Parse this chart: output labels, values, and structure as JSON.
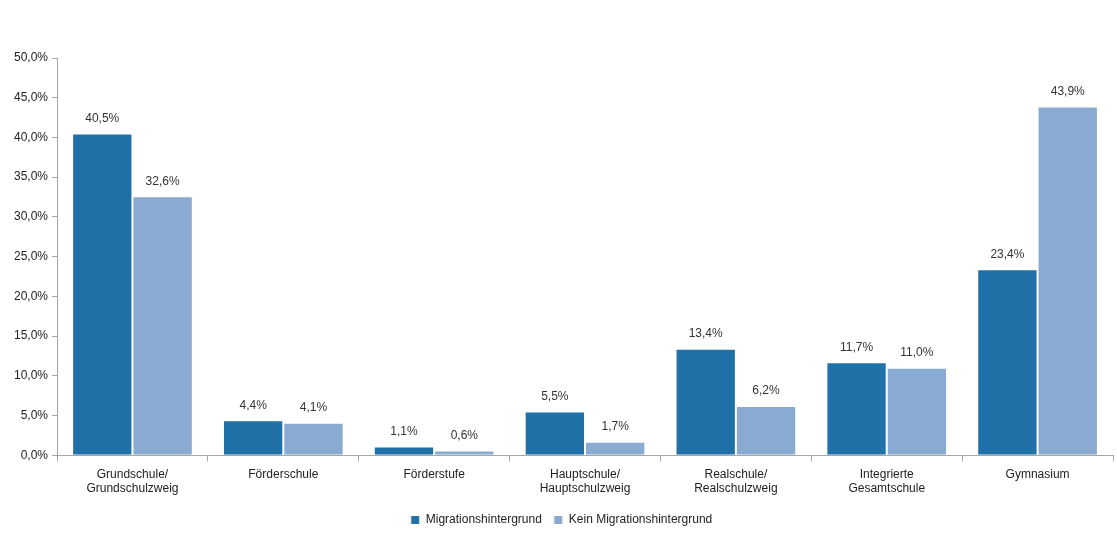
{
  "chart_data": {
    "type": "bar",
    "categories": [
      "Grundschule/ Grundschulzweig",
      "Förderschule",
      "Förderstufe",
      "Hauptschule/ Hauptschulzweig",
      "Realschule/ Realschulzweig",
      "Integrierte Gesamtschule",
      "Gymnasium"
    ],
    "series": [
      {
        "name": "Migrationshintergrund",
        "color": "#1f71a8",
        "values": [
          40.5,
          4.4,
          1.1,
          5.5,
          13.4,
          11.7,
          23.4
        ],
        "value_labels": [
          "40,5%",
          "4,4%",
          "1,1%",
          "5,5%",
          "13,4%",
          "11,7%",
          "23,4%"
        ]
      },
      {
        "name": "Kein Migrationshintergrund",
        "color": "#8aabd1",
        "values": [
          32.6,
          4.1,
          0.6,
          1.7,
          6.2,
          11.0,
          43.9
        ],
        "value_labels": [
          "32,6%",
          "4,1%",
          "0,6%",
          "1,7%",
          "6,2%",
          "11,0%",
          "43,9%"
        ]
      }
    ],
    "ylim": [
      0,
      50
    ],
    "yticks": [
      {
        "value": 0,
        "label": "0,0%"
      },
      {
        "value": 5,
        "label": "5,0%"
      },
      {
        "value": 10,
        "label": "10,0%"
      },
      {
        "value": 15,
        "label": "15,0%"
      },
      {
        "value": 20,
        "label": "20,0%"
      },
      {
        "value": 25,
        "label": "25,0%"
      },
      {
        "value": 30,
        "label": "30,0%"
      },
      {
        "value": 35,
        "label": "35,0%"
      },
      {
        "value": 40,
        "label": "40,0%"
      },
      {
        "value": 45,
        "label": "45,0%"
      },
      {
        "value": 50,
        "label": "50,0%"
      }
    ],
    "legend": "bottom"
  }
}
